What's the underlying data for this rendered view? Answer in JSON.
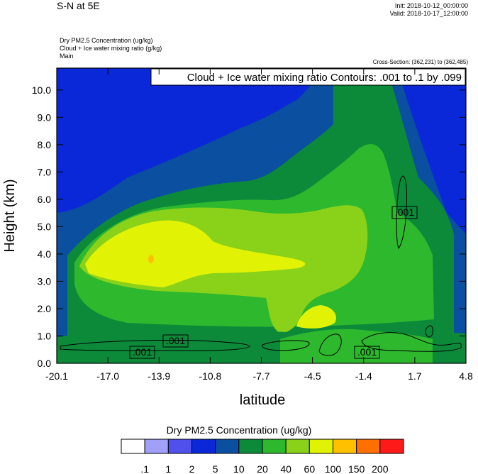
{
  "header": {
    "title": "S-N at 5E",
    "init": "Init: 2018-10-12_00:00:00",
    "valid": "Valid: 2018-10-17_12:00:00",
    "fields": [
      "Dry PM2.5 Concentration   (ug/kg)",
      "Cloud + Ice water mixing ratio   (g/kg)",
      "Main"
    ],
    "cross_section": "Cross-Section: (362,231) to (362,485)"
  },
  "chart_data": {
    "type": "heatmap",
    "xlabel": "latitude",
    "ylabel": "Height (km)",
    "xlim": [
      -20.1,
      4.8
    ],
    "ylim": [
      0.0,
      10.8
    ],
    "x_ticks": [
      "-20.1",
      "-17.0",
      "-13.9",
      "-10.8",
      "-7.7",
      "-4.5",
      "-1.4",
      "1.7",
      "4.8"
    ],
    "y_ticks": [
      "0.0",
      "1.0",
      "2.0",
      "3.0",
      "4.0",
      "5.0",
      "6.0",
      "7.0",
      "8.0",
      "9.0",
      "10.0"
    ],
    "legend_box": "Cloud + Ice water mixing ratio Contours: .001 to .1 by .099",
    "contour_labels": [
      ".001",
      ".001",
      ".001",
      ".001"
    ],
    "colorbar": {
      "title": "Dry PM2.5 Concentration  (ug/kg)",
      "levels": [
        ".1",
        "1",
        "2",
        "5",
        "10",
        "20",
        "40",
        "60",
        "100",
        "150",
        "200"
      ],
      "colors": [
        "#ffffff",
        "#a0a0f8",
        "#5050ec",
        "#0a28d8",
        "#0a4fa0",
        "#0c8a3a",
        "#2eb82e",
        "#8ad21a",
        "#e2f205",
        "#ffc000",
        "#ff7000",
        "#ff1a1a"
      ]
    }
  }
}
